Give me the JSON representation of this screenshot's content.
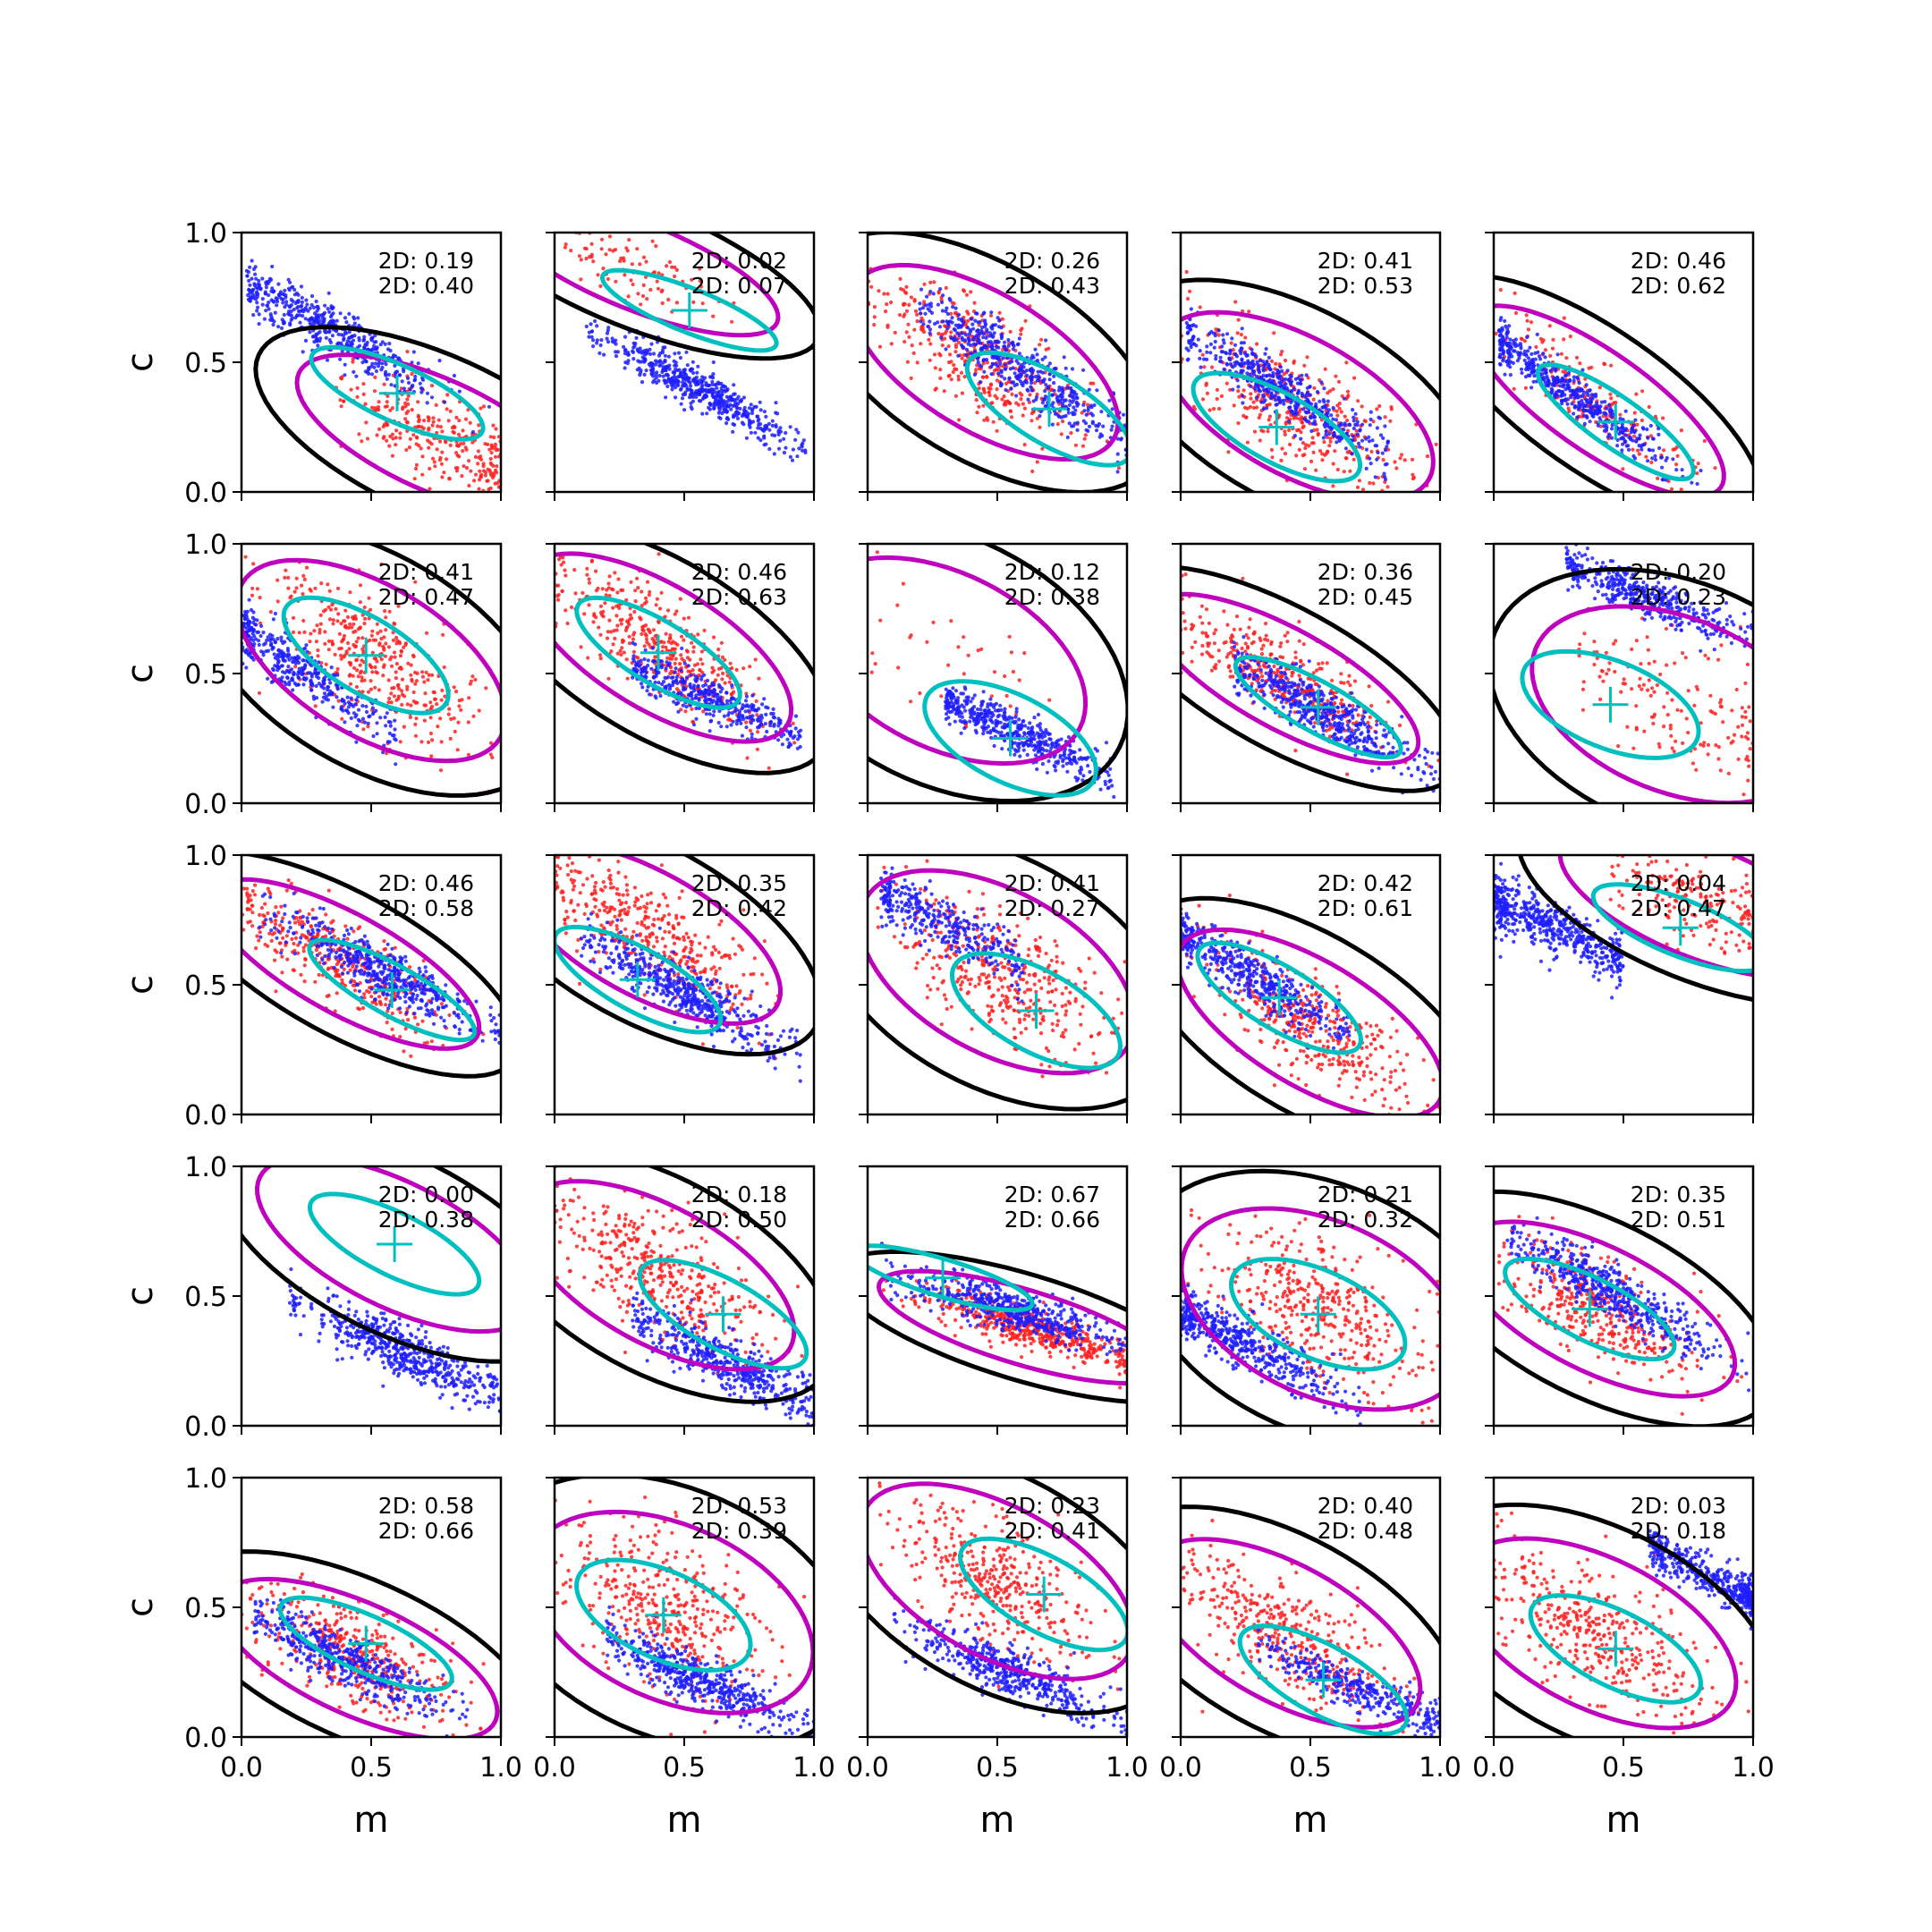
{
  "chart_data": {
    "type": "scatter",
    "layout": "5x5 grid of panels",
    "xlabel": "m",
    "ylabel": "c",
    "xlim": [
      0,
      1
    ],
    "ylim": [
      0,
      1
    ],
    "x_ticks": [
      "0.0",
      "0.5",
      "1.0"
    ],
    "y_ticks": [
      "0.0",
      "0.5",
      "1.0"
    ],
    "colors": {
      "blue_points": "#1f1fff",
      "red_points": "#ff2020",
      "outer_contour": "#000000",
      "middle_contour": "#bf00bf",
      "inner_contour": "#00bfbf",
      "marker": "#00bfbf"
    },
    "panels": [
      {
        "stats": [
          "2D: 0.19",
          "2D: 0.40"
        ],
        "marker": [
          0.6,
          0.38
        ],
        "blue": {
          "cx": 0.33,
          "cy": 0.63,
          "slope": -0.55,
          "sd": 0.05,
          "n": 500,
          "xr": [
            0.02,
            0.98
          ]
        },
        "red": {
          "cx": 0.75,
          "cy": 0.22,
          "slope": -0.45,
          "sd": 0.09,
          "n": 300,
          "xr": [
            0.35,
            1.0
          ]
        }
      },
      {
        "stats": [
          "2D: 0.02",
          "2D: 0.07"
        ],
        "marker": [
          0.52,
          0.7
        ],
        "blue": {
          "cx": 0.55,
          "cy": 0.4,
          "slope": -0.55,
          "sd": 0.04,
          "n": 550,
          "xr": [
            0.12,
            0.98
          ]
        },
        "red": {
          "cx": 0.32,
          "cy": 0.87,
          "slope": -0.4,
          "sd": 0.07,
          "n": 100,
          "xr": [
            0.02,
            0.72
          ]
        }
      },
      {
        "stats": [
          "2D: 0.26",
          "2D: 0.43"
        ],
        "marker": [
          0.7,
          0.32
        ],
        "blue": {
          "cx": 0.6,
          "cy": 0.47,
          "slope": -0.65,
          "sd": 0.06,
          "n": 500,
          "xr": [
            0.2,
            1.0
          ]
        },
        "red": {
          "cx": 0.45,
          "cy": 0.5,
          "slope": -0.6,
          "sd": 0.11,
          "n": 400,
          "xr": [
            0.0,
            1.0
          ]
        }
      },
      {
        "stats": [
          "2D: 0.41",
          "2D: 0.53"
        ],
        "marker": [
          0.37,
          0.25
        ],
        "blue": {
          "cx": 0.38,
          "cy": 0.4,
          "slope": -0.6,
          "sd": 0.05,
          "n": 500,
          "xr": [
            0.02,
            0.8
          ]
        },
        "red": {
          "cx": 0.45,
          "cy": 0.33,
          "slope": -0.55,
          "sd": 0.11,
          "n": 400,
          "xr": [
            0.0,
            1.0
          ]
        }
      },
      {
        "stats": [
          "2D: 0.46",
          "2D: 0.62"
        ],
        "marker": [
          0.47,
          0.27
        ],
        "blue": {
          "cx": 0.3,
          "cy": 0.38,
          "slope": -0.7,
          "sd": 0.04,
          "n": 500,
          "xr": [
            0.02,
            0.8
          ]
        },
        "red": {
          "cx": 0.4,
          "cy": 0.35,
          "slope": -0.7,
          "sd": 0.08,
          "n": 200,
          "xr": [
            0.0,
            1.0
          ]
        }
      },
      {
        "stats": [
          "2D: 0.41",
          "2D: 0.47"
        ],
        "marker": [
          0.48,
          0.57
        ],
        "blue": {
          "cx": 0.22,
          "cy": 0.52,
          "slope": -0.7,
          "sd": 0.05,
          "n": 400,
          "xr": [
            0.0,
            0.6
          ]
        },
        "red": {
          "cx": 0.5,
          "cy": 0.55,
          "slope": -0.6,
          "sd": 0.12,
          "n": 400,
          "xr": [
            0.0,
            1.0
          ]
        }
      },
      {
        "stats": [
          "2D: 0.46",
          "2D: 0.63"
        ],
        "marker": [
          0.4,
          0.58
        ],
        "blue": {
          "cx": 0.6,
          "cy": 0.4,
          "slope": -0.45,
          "sd": 0.04,
          "n": 400,
          "xr": [
            0.3,
            0.95
          ]
        },
        "red": {
          "cx": 0.4,
          "cy": 0.6,
          "slope": -0.6,
          "sd": 0.1,
          "n": 400,
          "xr": [
            0.0,
            1.0
          ]
        }
      },
      {
        "stats": [
          "2D: 0.12",
          "2D: 0.38"
        ],
        "marker": [
          0.55,
          0.25
        ],
        "blue": {
          "cx": 0.55,
          "cy": 0.28,
          "slope": -0.45,
          "sd": 0.04,
          "n": 500,
          "xr": [
            0.3,
            0.95
          ]
        },
        "red": {
          "cx": 0.3,
          "cy": 0.55,
          "slope": -0.5,
          "sd": 0.14,
          "n": 40,
          "xr": [
            0.0,
            0.8
          ]
        }
      },
      {
        "stats": [
          "2D: 0.36",
          "2D: 0.45"
        ],
        "marker": [
          0.53,
          0.37
        ],
        "blue": {
          "cx": 0.55,
          "cy": 0.35,
          "slope": -0.55,
          "sd": 0.05,
          "n": 500,
          "xr": [
            0.2,
            1.0
          ]
        },
        "red": {
          "cx": 0.4,
          "cy": 0.48,
          "slope": -0.55,
          "sd": 0.08,
          "n": 400,
          "xr": [
            0.0,
            1.0
          ]
        }
      },
      {
        "stats": [
          "2D: 0.20",
          "2D: 0.23"
        ],
        "marker": [
          0.45,
          0.38
        ],
        "blue": {
          "cx": 0.6,
          "cy": 0.79,
          "slope": -0.4,
          "sd": 0.04,
          "n": 450,
          "xr": [
            0.28,
            1.0
          ]
        },
        "red": {
          "cx": 0.7,
          "cy": 0.38,
          "slope": -0.4,
          "sd": 0.14,
          "n": 150,
          "xr": [
            0.3,
            1.0
          ]
        }
      },
      {
        "stats": [
          "2D: 0.46",
          "2D: 0.58"
        ],
        "marker": [
          0.58,
          0.48
        ],
        "blue": {
          "cx": 0.55,
          "cy": 0.55,
          "slope": -0.5,
          "sd": 0.05,
          "n": 500,
          "xr": [
            0.05,
            1.0
          ]
        },
        "red": {
          "cx": 0.4,
          "cy": 0.58,
          "slope": -0.55,
          "sd": 0.08,
          "n": 400,
          "xr": [
            0.0,
            1.0
          ]
        }
      },
      {
        "stats": [
          "2D: 0.35",
          "2D: 0.42"
        ],
        "marker": [
          0.32,
          0.52
        ],
        "blue": {
          "cx": 0.5,
          "cy": 0.47,
          "slope": -0.55,
          "sd": 0.05,
          "n": 500,
          "xr": [
            0.1,
            0.95
          ]
        },
        "red": {
          "cx": 0.35,
          "cy": 0.7,
          "slope": -0.55,
          "sd": 0.1,
          "n": 400,
          "xr": [
            0.0,
            1.0
          ]
        }
      },
      {
        "stats": [
          "2D: 0.41",
          "2D: 0.27"
        ],
        "marker": [
          0.65,
          0.4
        ],
        "blue": {
          "cx": 0.3,
          "cy": 0.73,
          "slope": -0.5,
          "sd": 0.05,
          "n": 350,
          "xr": [
            0.05,
            0.6
          ]
        },
        "red": {
          "cx": 0.5,
          "cy": 0.55,
          "slope": -0.55,
          "sd": 0.13,
          "n": 400,
          "xr": [
            0.0,
            1.0
          ]
        }
      },
      {
        "stats": [
          "2D: 0.42",
          "2D: 0.61"
        ],
        "marker": [
          0.38,
          0.45
        ],
        "blue": {
          "cx": 0.25,
          "cy": 0.55,
          "slope": -0.6,
          "sd": 0.05,
          "n": 450,
          "xr": [
            0.0,
            0.65
          ]
        },
        "red": {
          "cx": 0.5,
          "cy": 0.35,
          "slope": -0.6,
          "sd": 0.1,
          "n": 400,
          "xr": [
            0.0,
            1.0
          ]
        }
      },
      {
        "stats": [
          "2D: 0.04",
          "2D: 0.47"
        ],
        "marker": [
          0.72,
          0.72
        ],
        "blue": {
          "cx": 0.22,
          "cy": 0.72,
          "slope": -0.45,
          "sd": 0.05,
          "n": 550,
          "xr": [
            0.0,
            0.5
          ]
        },
        "red": {
          "cx": 0.8,
          "cy": 0.82,
          "slope": -0.4,
          "sd": 0.09,
          "n": 200,
          "xr": [
            0.45,
            1.0
          ]
        }
      },
      {
        "stats": [
          "2D: 0.00",
          "2D: 0.38"
        ],
        "marker": [
          0.59,
          0.7
        ],
        "blue": {
          "cx": 0.63,
          "cy": 0.28,
          "slope": -0.45,
          "sd": 0.05,
          "n": 550,
          "xr": [
            0.18,
            1.0
          ]
        },
        "red": {
          "cx": 0.8,
          "cy": 0.8,
          "slope": -0.4,
          "sd": 0.05,
          "n": 0,
          "xr": [
            0.6,
            1.0
          ]
        }
      },
      {
        "stats": [
          "2D: 0.18",
          "2D: 0.50"
        ],
        "marker": [
          0.65,
          0.43
        ],
        "blue": {
          "cx": 0.65,
          "cy": 0.25,
          "slope": -0.5,
          "sd": 0.05,
          "n": 500,
          "xr": [
            0.3,
            1.0
          ]
        },
        "red": {
          "cx": 0.4,
          "cy": 0.58,
          "slope": -0.55,
          "sd": 0.11,
          "n": 400,
          "xr": [
            0.0,
            1.0
          ]
        }
      },
      {
        "stats": [
          "2D: 0.67",
          "2D: 0.66"
        ],
        "marker": [
          0.29,
          0.57
        ],
        "blue": {
          "cx": 0.55,
          "cy": 0.45,
          "slope": -0.3,
          "sd": 0.04,
          "n": 500,
          "xr": [
            0.05,
            1.0
          ]
        },
        "red": {
          "cx": 0.6,
          "cy": 0.38,
          "slope": -0.3,
          "sd": 0.04,
          "n": 500,
          "xr": [
            0.05,
            1.0
          ]
        }
      },
      {
        "stats": [
          "2D: 0.21",
          "2D: 0.32"
        ],
        "marker": [
          0.53,
          0.43
        ],
        "blue": {
          "cx": 0.22,
          "cy": 0.33,
          "slope": -0.5,
          "sd": 0.05,
          "n": 500,
          "xr": [
            0.0,
            0.7
          ]
        },
        "red": {
          "cx": 0.55,
          "cy": 0.45,
          "slope": -0.45,
          "sd": 0.14,
          "n": 400,
          "xr": [
            0.0,
            1.0
          ]
        }
      },
      {
        "stats": [
          "2D: 0.35",
          "2D: 0.51"
        ],
        "marker": [
          0.37,
          0.45
        ],
        "blue": {
          "cx": 0.45,
          "cy": 0.52,
          "slope": -0.55,
          "sd": 0.05,
          "n": 500,
          "xr": [
            0.05,
            1.0
          ]
        },
        "red": {
          "cx": 0.4,
          "cy": 0.45,
          "slope": -0.5,
          "sd": 0.1,
          "n": 400,
          "xr": [
            0.0,
            1.0
          ]
        }
      },
      {
        "stats": [
          "2D: 0.58",
          "2D: 0.66"
        ],
        "marker": [
          0.48,
          0.36
        ],
        "blue": {
          "cx": 0.4,
          "cy": 0.3,
          "slope": -0.45,
          "sd": 0.05,
          "n": 450,
          "xr": [
            0.05,
            0.9
          ]
        },
        "red": {
          "cx": 0.45,
          "cy": 0.3,
          "slope": -0.45,
          "sd": 0.09,
          "n": 400,
          "xr": [
            0.0,
            1.0
          ]
        }
      },
      {
        "stats": [
          "2D: 0.53",
          "2D: 0.39"
        ],
        "marker": [
          0.42,
          0.47
        ],
        "blue": {
          "cx": 0.55,
          "cy": 0.22,
          "slope": -0.45,
          "sd": 0.05,
          "n": 500,
          "xr": [
            0.2,
            1.0
          ]
        },
        "red": {
          "cx": 0.45,
          "cy": 0.48,
          "slope": -0.45,
          "sd": 0.14,
          "n": 400,
          "xr": [
            0.0,
            1.0
          ]
        }
      },
      {
        "stats": [
          "2D: 0.23",
          "2D: 0.41"
        ],
        "marker": [
          0.68,
          0.55
        ],
        "blue": {
          "cx": 0.55,
          "cy": 0.25,
          "slope": -0.45,
          "sd": 0.05,
          "n": 500,
          "xr": [
            0.1,
            1.0
          ]
        },
        "red": {
          "cx": 0.5,
          "cy": 0.6,
          "slope": -0.55,
          "sd": 0.12,
          "n": 400,
          "xr": [
            0.0,
            1.0
          ]
        }
      },
      {
        "stats": [
          "2D: 0.40",
          "2D: 0.48"
        ],
        "marker": [
          0.55,
          0.22
        ],
        "blue": {
          "cx": 0.7,
          "cy": 0.18,
          "slope": -0.45,
          "sd": 0.04,
          "n": 350,
          "xr": [
            0.3,
            1.0
          ]
        },
        "red": {
          "cx": 0.4,
          "cy": 0.4,
          "slope": -0.55,
          "sd": 0.11,
          "n": 400,
          "xr": [
            0.0,
            1.0
          ]
        }
      },
      {
        "stats": [
          "2D: 0.03",
          "2D: 0.18"
        ],
        "marker": [
          0.47,
          0.34
        ],
        "blue": {
          "cx": 0.83,
          "cy": 0.62,
          "slope": -0.5,
          "sd": 0.04,
          "n": 450,
          "xr": [
            0.6,
            1.0
          ]
        },
        "red": {
          "cx": 0.4,
          "cy": 0.4,
          "slope": -0.5,
          "sd": 0.12,
          "n": 400,
          "xr": [
            0.0,
            1.0
          ]
        }
      }
    ]
  }
}
